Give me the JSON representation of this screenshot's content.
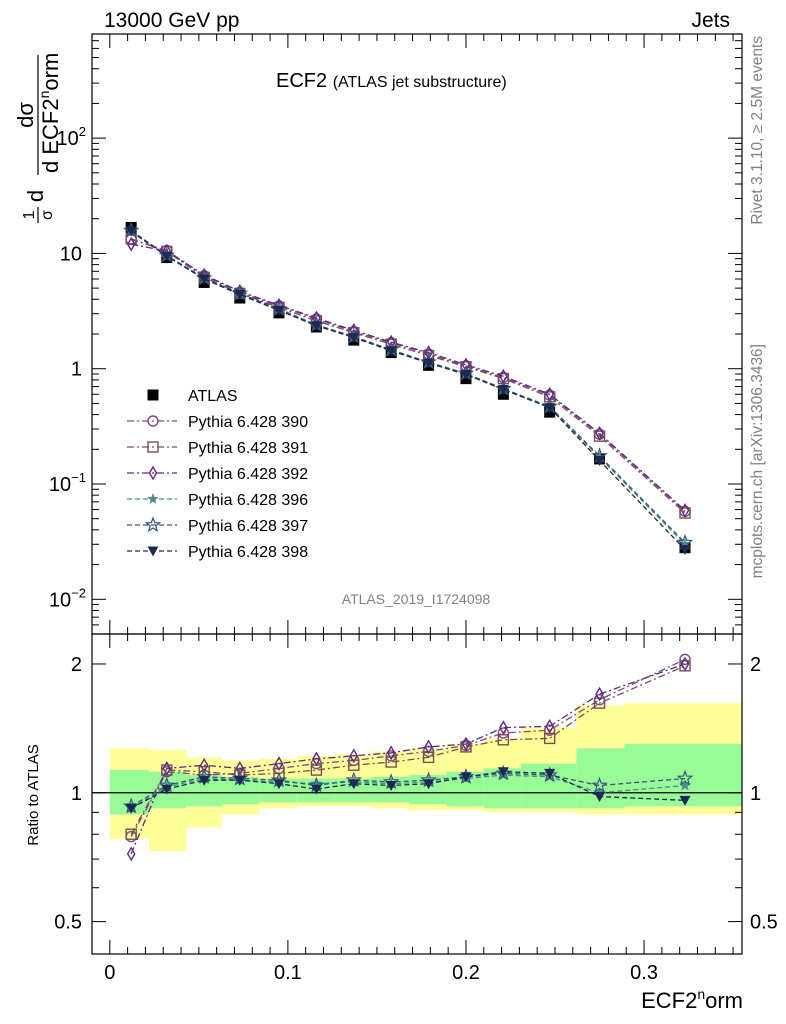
{
  "header": {
    "left": "13000 GeV pp",
    "right": "Jets"
  },
  "plot_title": {
    "main": "ECF2",
    "sub": "(ATLAS jet substructure)"
  },
  "analysis_id": "ATLAS_2019_I1724098",
  "side_text": {
    "rivet": "Rivet 3.1.10, ≥ 2.5M events",
    "mcplots": "mcplots.cern.ch [arXiv:1306.3436]"
  },
  "colors": {
    "atlas": "#000000",
    "p390": "#7b4a8e",
    "p391": "#7a4d52",
    "p392": "#5b2a86",
    "p396": "#4f8a8c",
    "p397": "#36577a",
    "p398": "#1b2a52",
    "band_inner": "#98fb98",
    "band_outer": "#ffff99"
  },
  "chart_data": [
    {
      "type": "line",
      "panel": "main",
      "ylabel_parts": {
        "a": "1",
        "b": "σ",
        "c": "d",
        "d": "dσ",
        "e": "d ECF2",
        "f": "n",
        "g": "orm"
      },
      "yscale": "log",
      "ylim": [
        0.005,
        800
      ],
      "xlim": [
        -0.01,
        0.355
      ],
      "y_ticks": [
        {
          "value": 0.01,
          "base": "10",
          "exp": "−2"
        },
        {
          "value": 0.1,
          "base": "10",
          "exp": "−1"
        },
        {
          "value": 1,
          "base": "1",
          "exp": ""
        },
        {
          "value": 10,
          "base": "10",
          "exp": ""
        },
        {
          "value": 100,
          "base": "10",
          "exp": "2"
        }
      ],
      "x": [
        0.012,
        0.032,
        0.053,
        0.073,
        0.095,
        0.116,
        0.137,
        0.158,
        0.179,
        0.2,
        0.221,
        0.247,
        0.275,
        0.323
      ],
      "series": [
        {
          "name": "ATLAS",
          "key": "atlas",
          "marker": "square",
          "values": [
            16.8,
            9.2,
            5.6,
            4.1,
            3.05,
            2.3,
            1.77,
            1.38,
            1.07,
            0.82,
            0.6,
            0.42,
            0.165,
            0.028
          ]
        },
        {
          "name": "Pythia 6.428 390",
          "key": "p390",
          "marker": "circle",
          "dash": "7,3,2,3",
          "values": [
            13.2,
            10.6,
            6.4,
            4.6,
            3.5,
            2.7,
            2.1,
            1.68,
            1.34,
            1.06,
            0.84,
            0.59,
            0.27,
            0.058
          ]
        },
        {
          "name": "Pythia 6.428 391",
          "key": "p391",
          "marker": "square-open",
          "dash": "7,3,2,3",
          "values": [
            13.4,
            10.4,
            6.2,
            4.5,
            3.4,
            2.6,
            2.05,
            1.63,
            1.3,
            1.04,
            0.82,
            0.57,
            0.26,
            0.056
          ]
        },
        {
          "name": "Pythia 6.428 392",
          "key": "p392",
          "marker": "diamond-open",
          "dash": "7,3,2,3",
          "values": [
            12.0,
            10.5,
            6.5,
            4.7,
            3.55,
            2.75,
            2.15,
            1.7,
            1.38,
            1.08,
            0.86,
            0.6,
            0.275,
            0.059
          ]
        },
        {
          "name": "Pythia 6.428 396",
          "key": "p396",
          "marker": "star",
          "dash": "5,3",
          "values": [
            15.4,
            9.5,
            6.05,
            4.45,
            3.25,
            2.38,
            1.88,
            1.44,
            1.12,
            0.9,
            0.66,
            0.46,
            0.17,
            0.03
          ]
        },
        {
          "name": "Pythia 6.428 397",
          "key": "p397",
          "marker": "star-open",
          "dash": "5,3",
          "values": [
            15.8,
            9.6,
            6.1,
            4.5,
            3.3,
            2.4,
            1.9,
            1.46,
            1.14,
            0.91,
            0.67,
            0.47,
            0.175,
            0.031
          ]
        },
        {
          "name": "Pythia 6.428 398",
          "key": "p398",
          "marker": "triangle-down",
          "dash": "5,3",
          "values": [
            15.6,
            9.45,
            6.0,
            4.4,
            3.2,
            2.36,
            1.86,
            1.43,
            1.12,
            0.89,
            0.66,
            0.46,
            0.16,
            0.027
          ]
        }
      ]
    },
    {
      "type": "line",
      "panel": "ratio",
      "ylabel": "Ratio to ATLAS",
      "yscale": "log",
      "ylim": [
        0.42,
        2.35
      ],
      "xlim": [
        -0.01,
        0.355
      ],
      "y_ticks": [
        {
          "value": 0.5,
          "label": "0.5"
        },
        {
          "value": 1,
          "label": "1"
        },
        {
          "value": 2,
          "label": "2"
        }
      ],
      "xlabel_parts": {
        "base": "ECF2",
        "sup": "n",
        "rest": "orm"
      },
      "x_ticks": [
        {
          "value": 0,
          "label": "0"
        },
        {
          "value": 0.1,
          "label": "0.1"
        },
        {
          "value": 0.2,
          "label": "0.2"
        },
        {
          "value": 0.3,
          "label": "0.3"
        }
      ],
      "bands": {
        "edges": [
          0,
          0.022,
          0.043,
          0.063,
          0.084,
          0.105,
          0.126,
          0.147,
          0.168,
          0.189,
          0.21,
          0.231,
          0.262,
          0.289,
          0.355
        ],
        "inner_low": [
          0.89,
          0.92,
          0.93,
          0.94,
          0.95,
          0.95,
          0.95,
          0.95,
          0.94,
          0.93,
          0.92,
          0.92,
          0.92,
          0.93
        ],
        "inner_high": [
          1.13,
          1.12,
          1.1,
          1.09,
          1.08,
          1.08,
          1.08,
          1.09,
          1.1,
          1.12,
          1.14,
          1.17,
          1.27,
          1.3
        ],
        "outer_low": [
          0.78,
          0.73,
          0.83,
          0.89,
          0.92,
          0.93,
          0.93,
          0.92,
          0.91,
          0.91,
          0.9,
          0.9,
          0.89,
          0.89
        ],
        "outer_high": [
          1.27,
          1.26,
          1.21,
          1.19,
          1.2,
          1.22,
          1.23,
          1.25,
          1.27,
          1.3,
          1.34,
          1.42,
          1.6,
          1.62
        ]
      },
      "series": [
        {
          "name": "Pythia 6.428 390",
          "key": "p390",
          "marker": "circle",
          "dash": "7,3,2,3",
          "values": [
            0.79,
            1.12,
            1.1,
            1.11,
            1.14,
            1.17,
            1.19,
            1.22,
            1.25,
            1.29,
            1.38,
            1.4,
            1.65,
            2.05
          ]
        },
        {
          "name": "Pythia 6.428 391",
          "key": "p391",
          "marker": "square-open",
          "dash": "7,3,2,3",
          "values": [
            0.8,
            1.13,
            1.12,
            1.1,
            1.11,
            1.13,
            1.16,
            1.18,
            1.21,
            1.28,
            1.33,
            1.34,
            1.62,
            1.98
          ]
        },
        {
          "name": "Pythia 6.428 392",
          "key": "p392",
          "marker": "diamond-open",
          "dash": "7,3,2,3",
          "values": [
            0.72,
            1.14,
            1.16,
            1.14,
            1.17,
            1.2,
            1.22,
            1.24,
            1.28,
            1.3,
            1.42,
            1.43,
            1.7,
            2.0
          ]
        },
        {
          "name": "Pythia 6.428 396",
          "key": "p396",
          "marker": "star",
          "dash": "5,3",
          "values": [
            0.92,
            1.03,
            1.08,
            1.07,
            1.06,
            1.05,
            1.06,
            1.05,
            1.06,
            1.08,
            1.1,
            1.09,
            1.0,
            1.04
          ]
        },
        {
          "name": "Pythia 6.428 397",
          "key": "p397",
          "marker": "star-open",
          "dash": "5,3",
          "values": [
            0.93,
            1.04,
            1.09,
            1.08,
            1.07,
            1.04,
            1.07,
            1.06,
            1.07,
            1.09,
            1.11,
            1.1,
            1.04,
            1.08
          ]
        },
        {
          "name": "Pythia 6.428 398",
          "key": "p398",
          "marker": "triangle-down",
          "dash": "5,3",
          "values": [
            0.92,
            1.02,
            1.07,
            1.07,
            1.05,
            1.02,
            1.05,
            1.04,
            1.05,
            1.09,
            1.12,
            1.11,
            0.98,
            0.96
          ]
        }
      ]
    }
  ]
}
